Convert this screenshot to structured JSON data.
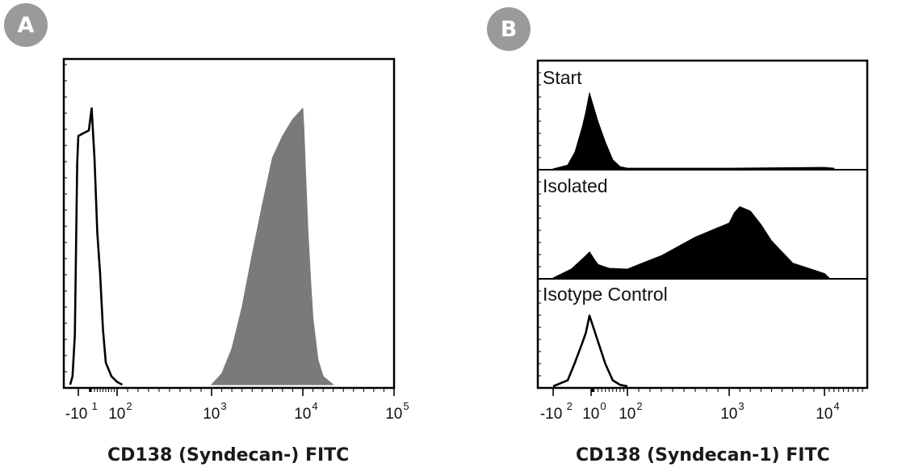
{
  "figure": {
    "panel_a_label": "A",
    "panel_b_label": "B",
    "panel_a_xlabel": "CD138 (Syndecan-) FITC",
    "panel_b_xlabel": "CD138 (Syndecan-1) FITC"
  },
  "chart_data": [
    {
      "panel": "A",
      "type": "area",
      "title": "",
      "xlabel": "CD138 (Syndecan-) FITC",
      "ylabel": "",
      "x_scale": "biexponential",
      "xlim": [
        -100,
        100000
      ],
      "x_ticks": [
        {
          "base": "-10",
          "exp": "1",
          "value": -10
        },
        {
          "base": "10",
          "exp": "2",
          "value": 100
        },
        {
          "base": "10",
          "exp": "3",
          "value": 1000
        },
        {
          "base": "10",
          "exp": "4",
          "value": 10000
        },
        {
          "base": "10",
          "exp": "5",
          "value": 100000
        }
      ],
      "grid": false,
      "series": [
        {
          "style": "outline",
          "color": "#000000",
          "x": [
            -80,
            -60,
            -40,
            -30,
            -20,
            -10,
            0,
            10,
            20,
            30,
            40,
            50,
            60,
            80,
            100,
            150
          ],
          "y": [
            0.0,
            0.03,
            0.18,
            0.48,
            0.8,
            0.9,
            0.92,
            1.0,
            0.82,
            0.55,
            0.4,
            0.2,
            0.08,
            0.03,
            0.01,
            0.0
          ]
        },
        {
          "style": "filled",
          "color": "#7a7a7a",
          "x": [
            1000,
            2000,
            3000,
            4000,
            5000,
            6000,
            7000,
            8000,
            9000,
            10000,
            11000,
            13000,
            15000,
            18000,
            20000,
            25000,
            30000,
            40000
          ],
          "y": [
            0.0,
            0.04,
            0.13,
            0.28,
            0.47,
            0.65,
            0.82,
            0.9,
            0.96,
            1.0,
            0.93,
            0.74,
            0.56,
            0.36,
            0.24,
            0.09,
            0.03,
            0.0
          ]
        }
      ]
    },
    {
      "panel": "B",
      "type": "area",
      "title": "",
      "xlabel": "CD138 (Syndecan-1) FITC",
      "ylabel": "",
      "x_scale": "biexponential",
      "xlim": [
        -200,
        100000
      ],
      "x_ticks": [
        {
          "base": "-10",
          "exp": "2",
          "value": -100
        },
        {
          "base": "10",
          "exp": "0",
          "value": 1
        },
        {
          "base": "10",
          "exp": "2",
          "value": 100
        },
        {
          "base": "10",
          "exp": "3",
          "value": 1000
        },
        {
          "base": "10",
          "exp": "4",
          "value": 10000
        }
      ],
      "grid": false,
      "subpanels": [
        {
          "label": "Start",
          "style": "filled",
          "color": "#000000",
          "x": [
            -100,
            -60,
            -40,
            -20,
            -10,
            0,
            10,
            20,
            40,
            60,
            80,
            100,
            1000,
            10000,
            30000
          ],
          "y": [
            0.0,
            0.05,
            0.22,
            0.55,
            0.75,
            1.0,
            0.78,
            0.62,
            0.35,
            0.12,
            0.03,
            0.01,
            0.01,
            0.02,
            0.01
          ]
        },
        {
          "label": "Isolated",
          "style": "filled",
          "color": "#000000",
          "x": [
            -100,
            -50,
            -10,
            0,
            10,
            20,
            50,
            100,
            200,
            400,
            700,
            1000,
            1500,
            2000,
            3000,
            4000,
            5000,
            7000,
            10000,
            20000
          ],
          "y": [
            0.0,
            0.12,
            0.3,
            0.35,
            0.25,
            0.18,
            0.13,
            0.12,
            0.18,
            0.3,
            0.55,
            0.74,
            0.88,
            0.96,
            0.9,
            0.72,
            0.5,
            0.2,
            0.06,
            0.0
          ]
        },
        {
          "label": "Isotype Control",
          "style": "outline",
          "color": "#000000",
          "x": [
            -100,
            -60,
            -40,
            -20,
            -10,
            0,
            10,
            20,
            40,
            60,
            80,
            100
          ],
          "y": [
            0.0,
            0.08,
            0.32,
            0.58,
            0.72,
            0.95,
            0.75,
            0.6,
            0.3,
            0.08,
            0.02,
            0.0
          ]
        }
      ]
    }
  ]
}
